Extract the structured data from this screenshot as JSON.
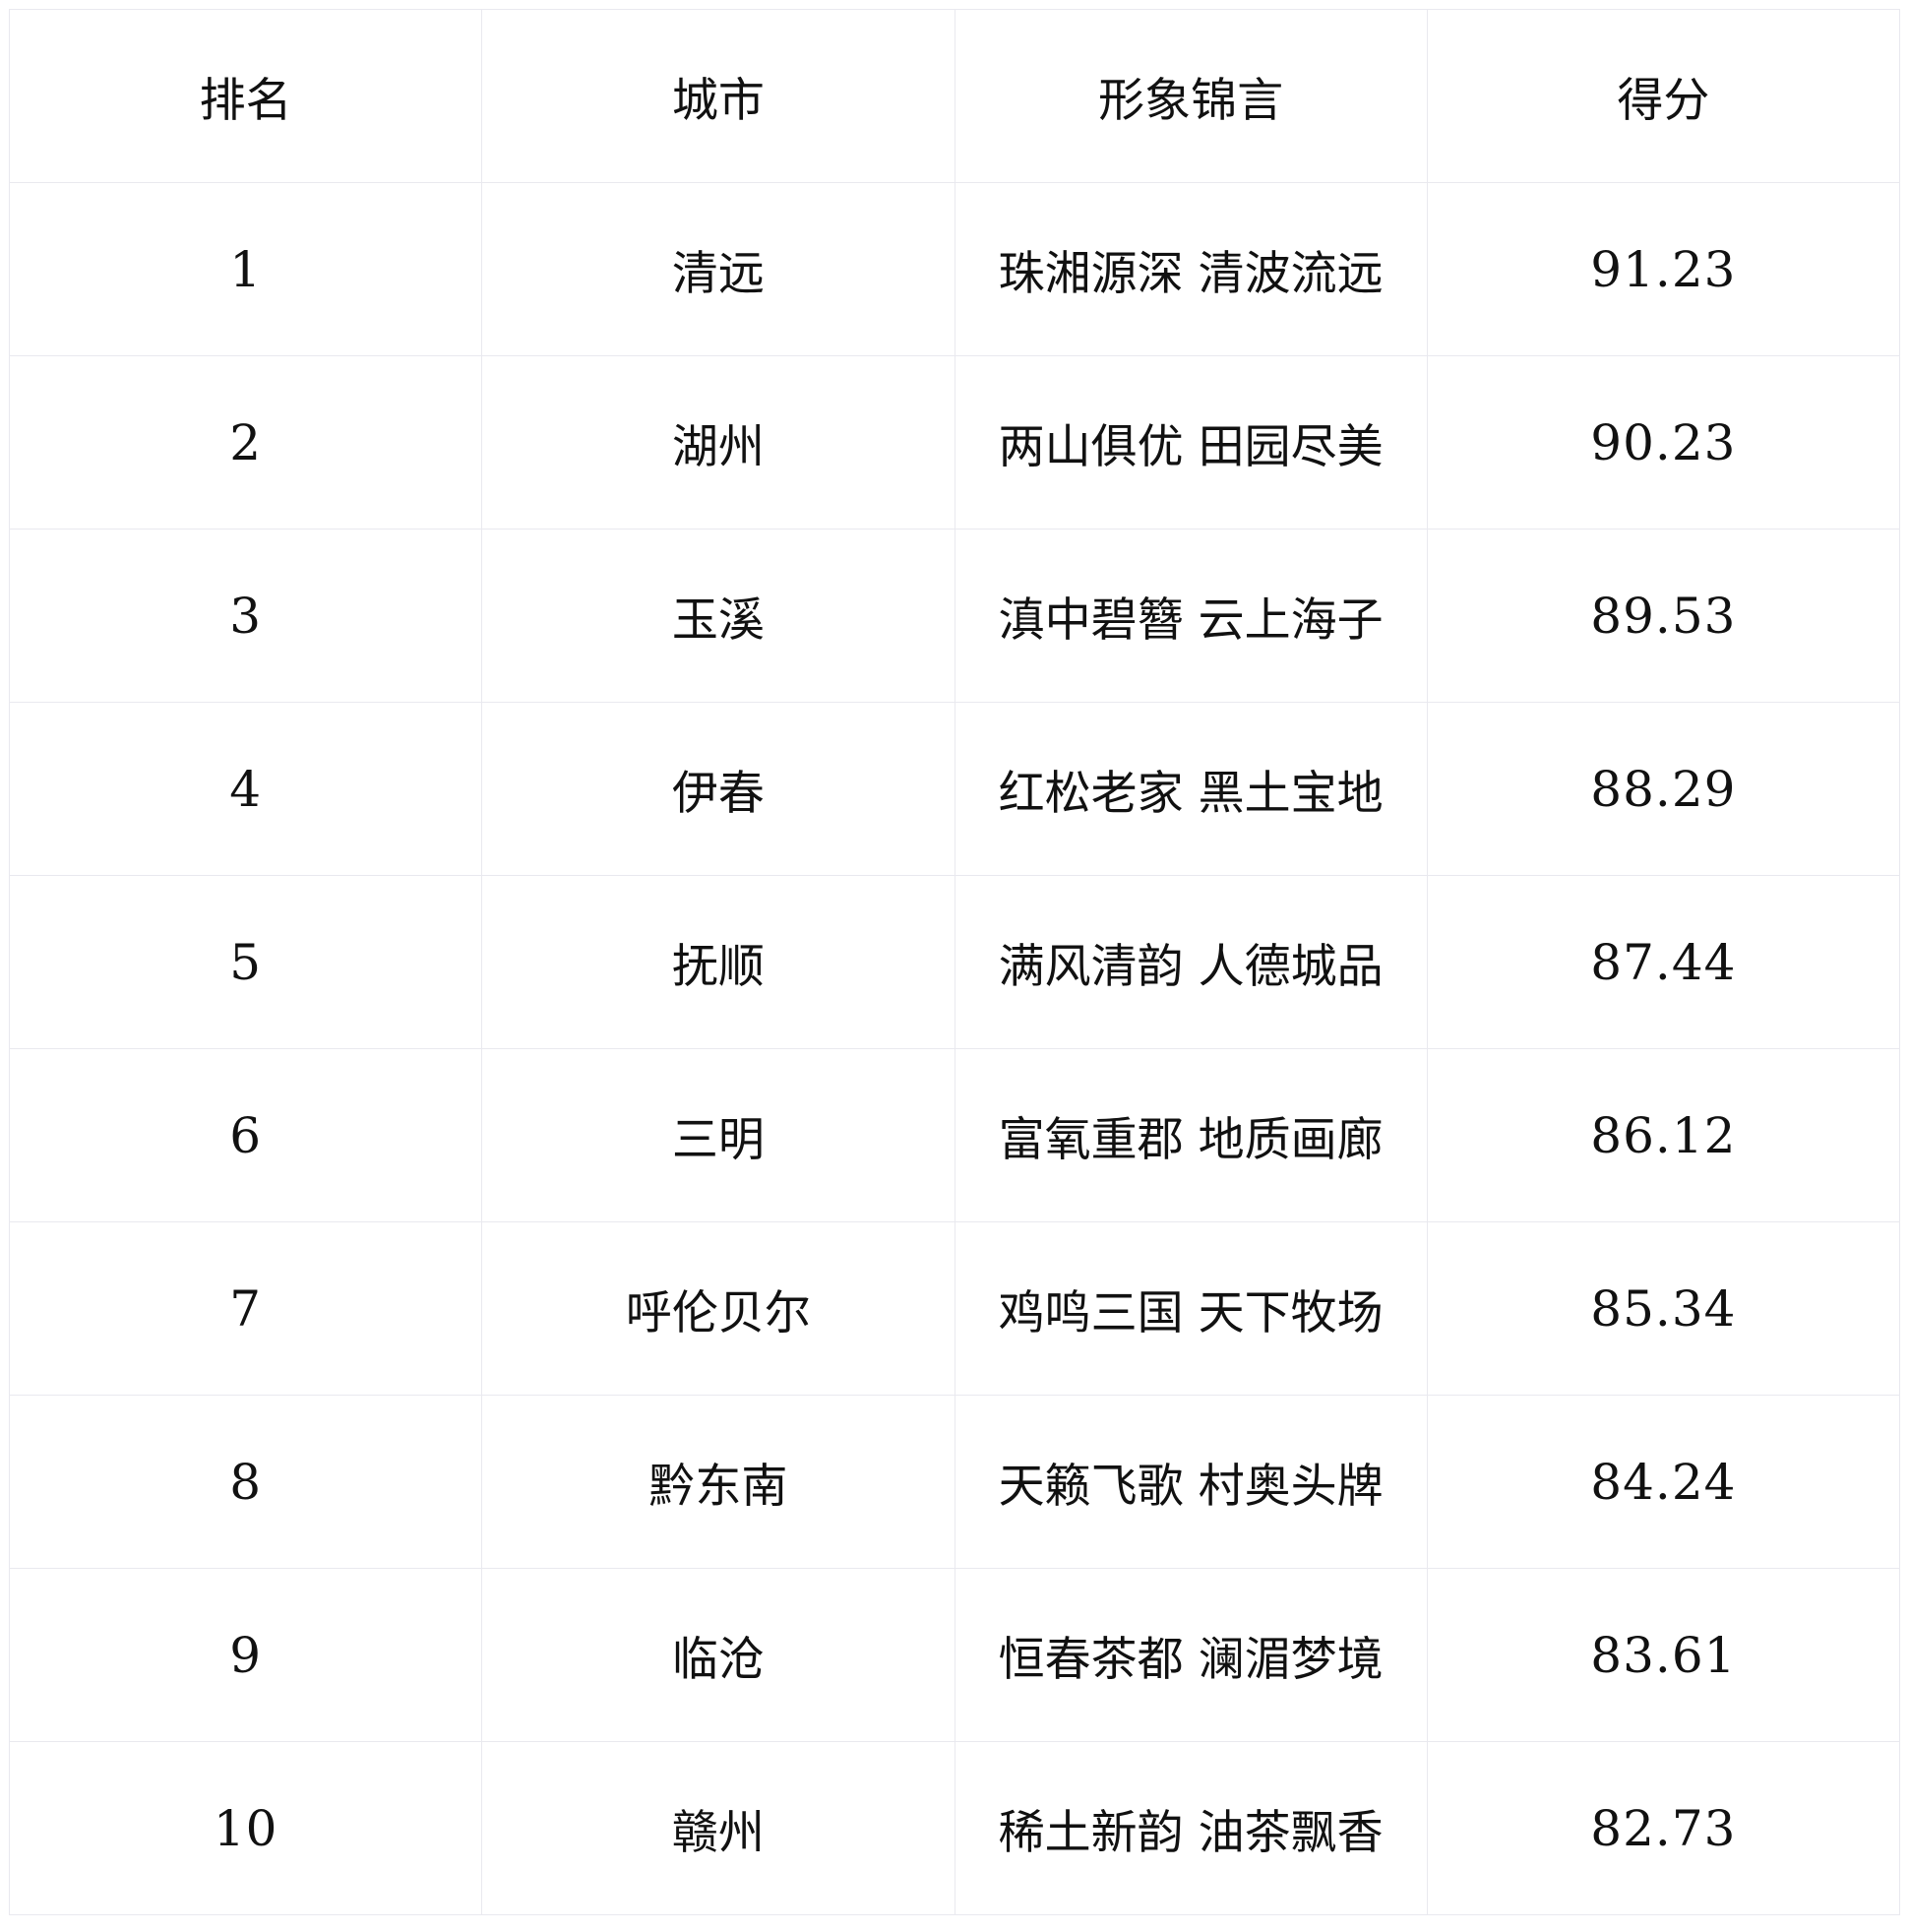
{
  "table": {
    "headers": [
      "排名",
      "城市",
      "形象锦言",
      "得分"
    ],
    "rows": [
      {
        "rank": "1",
        "city": "清远",
        "slogan": "珠湘源深 清波流远",
        "score": "91.23"
      },
      {
        "rank": "2",
        "city": "湖州",
        "slogan": "两山俱优 田园尽美",
        "score": "90.23"
      },
      {
        "rank": "3",
        "city": "玉溪",
        "slogan": "滇中碧簪 云上海子",
        "score": "89.53"
      },
      {
        "rank": "4",
        "city": "伊春",
        "slogan": "红松老家 黑土宝地",
        "score": "88.29"
      },
      {
        "rank": "5",
        "city": "抚顺",
        "slogan": "满风清韵 人德城品",
        "score": "87.44"
      },
      {
        "rank": "6",
        "city": "三明",
        "slogan": "富氧重郡 地质画廊",
        "score": "86.12"
      },
      {
        "rank": "7",
        "city": "呼伦贝尔",
        "slogan": "鸡鸣三国 天下牧场",
        "score": "85.34"
      },
      {
        "rank": "8",
        "city": "黔东南",
        "slogan": "天籁飞歌 村奥头牌",
        "score": "84.24"
      },
      {
        "rank": "9",
        "city": "临沧",
        "slogan": "恒春茶都 澜湄梦境",
        "score": "83.61"
      },
      {
        "rank": "10",
        "city": "赣州",
        "slogan": "稀土新韵 油茶飘香",
        "score": "82.73"
      }
    ]
  }
}
